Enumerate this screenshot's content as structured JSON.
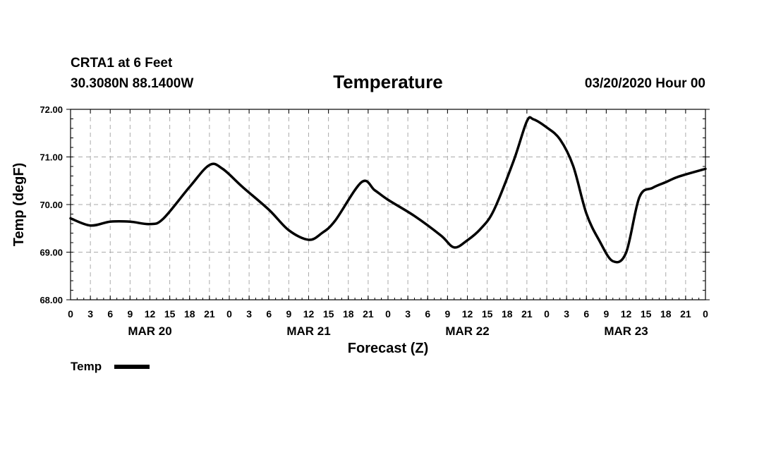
{
  "header": {
    "station": "CRTA1 at 6 Feet",
    "location": "30.3080N 88.1400W",
    "datetime": "03/20/2020 Hour 00"
  },
  "chart_data": {
    "type": "line",
    "title": "Temperature",
    "xlabel": "Forecast (Z)",
    "ylabel": "Temp (degF)",
    "ylim": [
      68,
      72
    ],
    "xlim": [
      0,
      96
    ],
    "y_ticks": [
      "68.00",
      "69.00",
      "70.00",
      "71.00",
      "72.00"
    ],
    "y_tick_values": [
      68,
      69,
      70,
      71,
      72
    ],
    "x_tick_labels": [
      "0",
      "3",
      "6",
      "9",
      "12",
      "15",
      "18",
      "21",
      "0",
      "3",
      "6",
      "9",
      "12",
      "15",
      "18",
      "21",
      "0",
      "3",
      "6",
      "9",
      "12",
      "15",
      "18",
      "21",
      "0",
      "3",
      "6",
      "9",
      "12",
      "15",
      "18",
      "21",
      "0"
    ],
    "date_labels": [
      {
        "label": "MAR 20",
        "hour": 12
      },
      {
        "label": "MAR 21",
        "hour": 36
      },
      {
        "label": "MAR 22",
        "hour": 60
      },
      {
        "label": "MAR 23",
        "hour": 84
      }
    ],
    "grid": true,
    "series": [
      {
        "name": "Temp",
        "color": "#000000",
        "x": [
          0,
          3,
          6,
          9,
          12,
          14,
          18,
          21,
          23,
          26,
          30,
          33,
          36,
          38,
          40,
          44,
          46,
          48,
          52,
          56,
          58,
          60,
          62,
          64,
          67,
          69,
          70,
          72,
          74,
          76,
          78,
          80,
          82,
          84,
          86,
          88,
          90,
          92,
          96
        ],
        "values": [
          69.71,
          69.56,
          69.64,
          69.64,
          69.59,
          69.7,
          70.37,
          70.83,
          70.75,
          70.37,
          69.89,
          69.46,
          69.26,
          69.4,
          69.66,
          70.47,
          70.3,
          70.1,
          69.76,
          69.35,
          69.1,
          69.25,
          69.49,
          69.88,
          70.92,
          71.75,
          71.79,
          71.62,
          71.37,
          70.81,
          69.81,
          69.23,
          68.81,
          68.99,
          70.15,
          70.35,
          70.47,
          70.59,
          70.75
        ]
      }
    ],
    "legend": {
      "label": "Temp",
      "position": "bottom-left"
    }
  }
}
